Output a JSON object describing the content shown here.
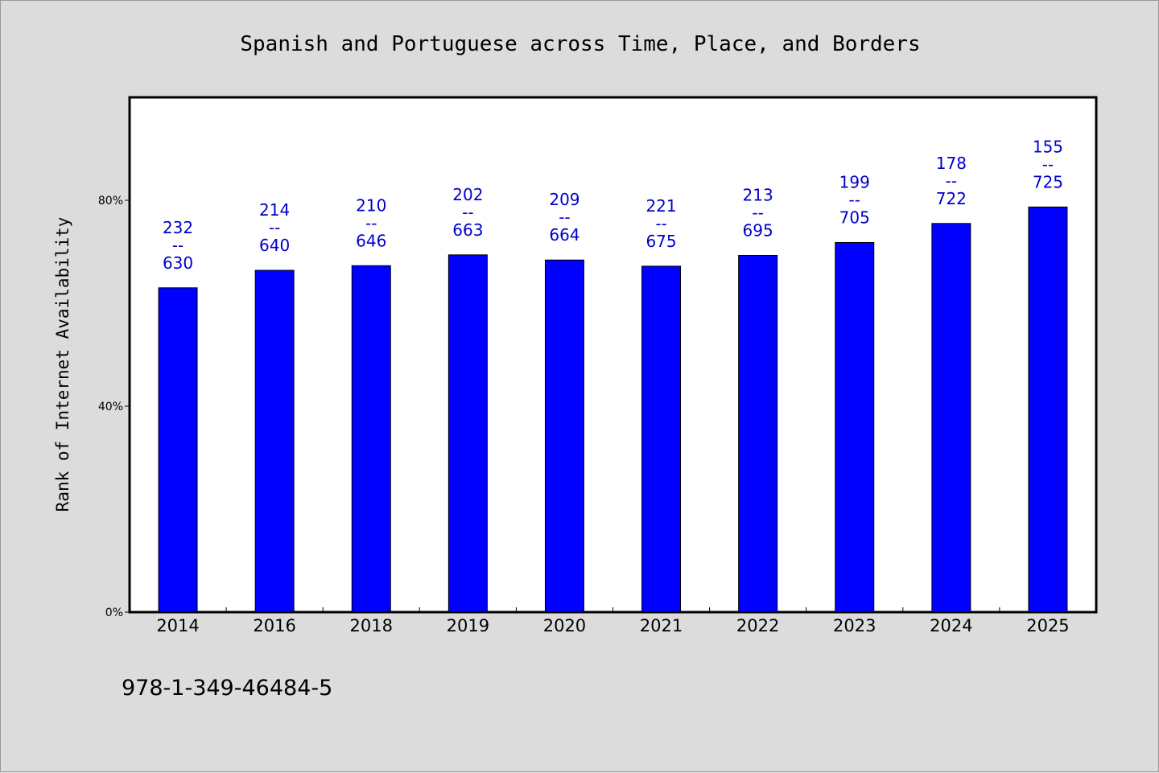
{
  "chart_data": {
    "type": "bar",
    "title": "Spanish and Portuguese across Time, Place, and Borders",
    "xlabel": "",
    "ylabel": "Rank of Internet Availability",
    "ylim": [
      0,
      100
    ],
    "y_ticks": [
      "0%",
      "40%",
      "80%"
    ],
    "y_tick_values": [
      0,
      40,
      80
    ],
    "categories": [
      "2014",
      "2016",
      "2018",
      "2019",
      "2020",
      "2021",
      "2022",
      "2023",
      "2024",
      "2025"
    ],
    "values": [
      63.0,
      66.4,
      67.3,
      69.4,
      68.4,
      67.2,
      69.3,
      71.8,
      75.5,
      78.7
    ],
    "labels_top": [
      "232",
      "214",
      "210",
      "202",
      "209",
      "221",
      "213",
      "199",
      "178",
      "155"
    ],
    "labels_sep": "--",
    "labels_bottom": [
      "630",
      "640",
      "646",
      "663",
      "664",
      "675",
      "695",
      "705",
      "722",
      "725"
    ],
    "bar_color": "#0000ff",
    "label_color": "#0000cc",
    "grid": false,
    "legend": "none"
  },
  "footer": {
    "isbn": "978-1-349-46484-5"
  }
}
